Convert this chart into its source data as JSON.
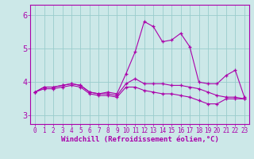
{
  "title": "",
  "xlabel": "Windchill (Refroidissement éolien,°C)",
  "xlim": [
    -0.5,
    23.5
  ],
  "ylim": [
    2.75,
    6.3
  ],
  "yticks": [
    3,
    4,
    5,
    6
  ],
  "xticks": [
    0,
    1,
    2,
    3,
    4,
    5,
    6,
    7,
    8,
    9,
    10,
    11,
    12,
    13,
    14,
    15,
    16,
    17,
    18,
    19,
    20,
    21,
    22,
    23
  ],
  "background_color": "#cce8e8",
  "line_color": "#aa00aa",
  "spine_color": "#aa00aa",
  "grid_color": "#99cccc",
  "tick_color": "#aa00aa",
  "series": [
    [
      3.7,
      3.85,
      3.85,
      3.9,
      3.95,
      3.9,
      3.7,
      3.65,
      3.7,
      3.65,
      4.25,
      4.9,
      5.8,
      5.65,
      5.2,
      5.25,
      5.45,
      5.05,
      4.0,
      3.95,
      3.95,
      4.2,
      4.35,
      3.55
    ],
    [
      3.7,
      3.85,
      3.85,
      3.9,
      3.95,
      3.9,
      3.7,
      3.65,
      3.65,
      3.6,
      3.95,
      4.1,
      3.95,
      3.95,
      3.95,
      3.9,
      3.9,
      3.85,
      3.8,
      3.7,
      3.6,
      3.55,
      3.55,
      3.5
    ],
    [
      3.7,
      3.8,
      3.8,
      3.85,
      3.9,
      3.85,
      3.65,
      3.6,
      3.6,
      3.55,
      3.85,
      3.85,
      3.75,
      3.7,
      3.65,
      3.65,
      3.6,
      3.55,
      3.45,
      3.35,
      3.35,
      3.5,
      3.5,
      3.5
    ]
  ],
  "xlabel_fontsize": 6.5,
  "tick_fontsize": 5.5,
  "ytick_fontsize": 7.0
}
